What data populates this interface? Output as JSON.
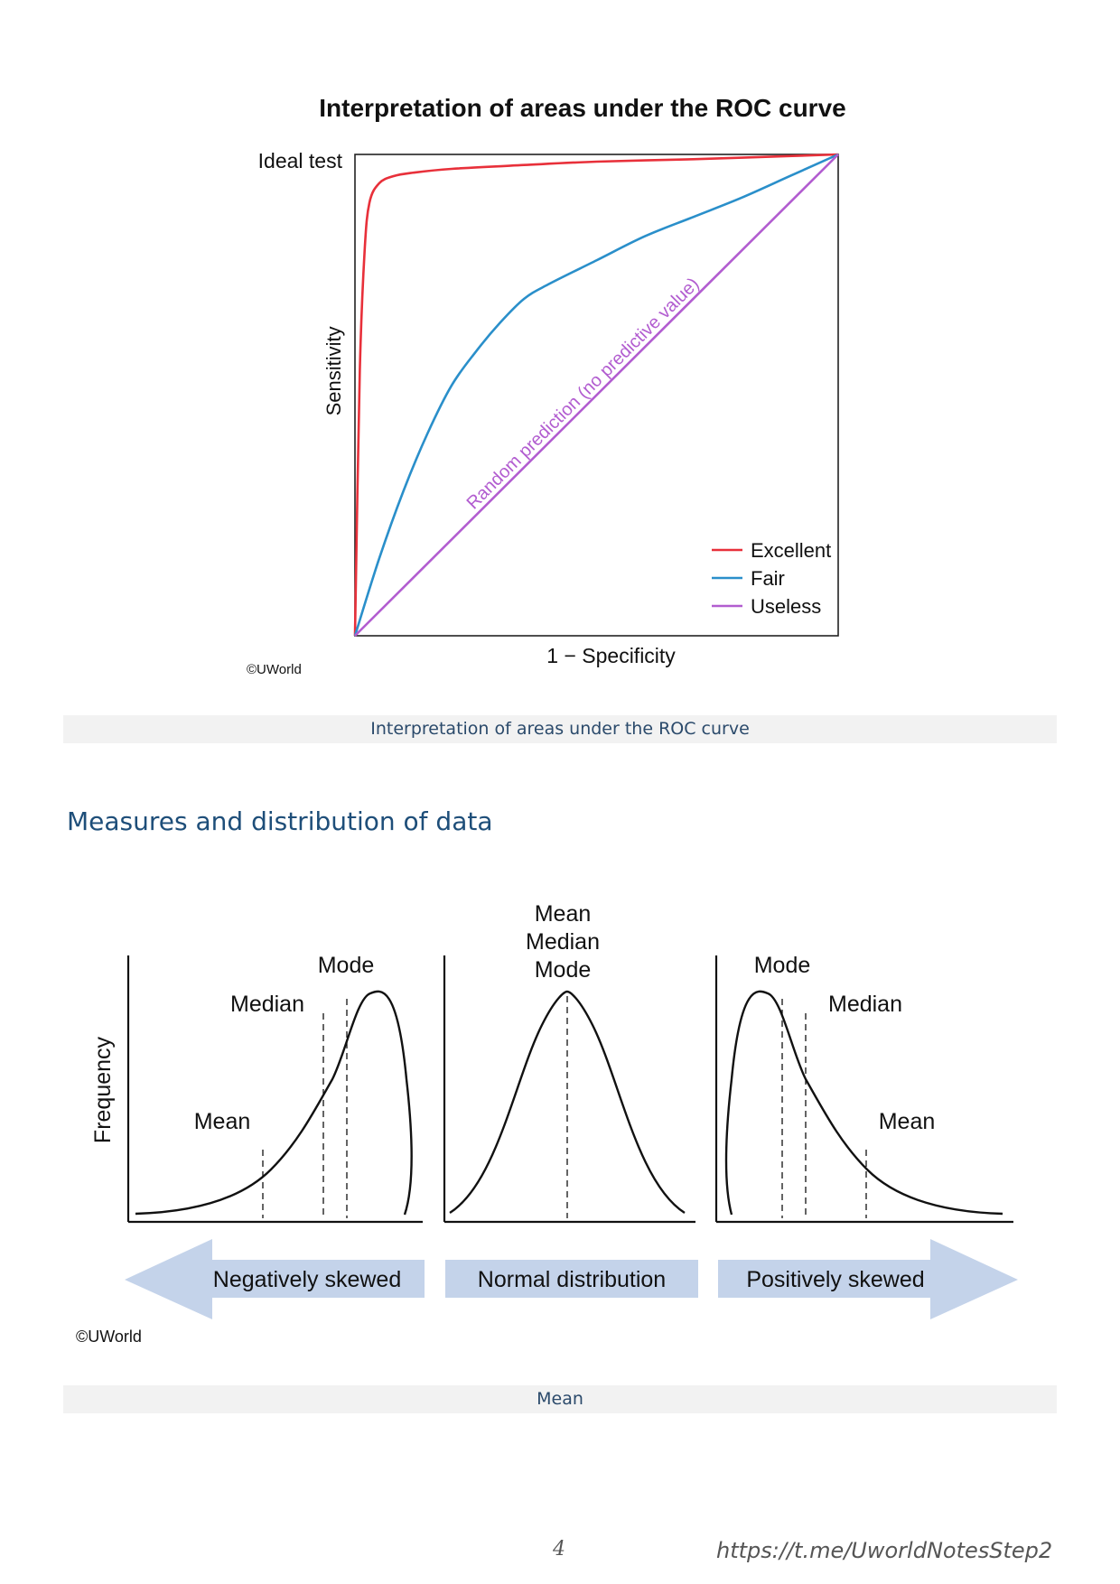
{
  "roc_figure": {
    "title": "Interpretation of areas under the ROC curve",
    "ideal_label": "Ideal test",
    "diagonal_label": "Random prediction (no predictive value)",
    "copyright": "©UWorld",
    "caption": "Interpretation of areas under the ROC curve"
  },
  "section_heading": "Measures and distribution of data",
  "distribution_figure": {
    "ylabel": "Frequency",
    "panels": [
      {
        "name": "Negatively skewed",
        "labels": [
          "Mode",
          "Median",
          "Mean"
        ]
      },
      {
        "name": "Normal distribution",
        "labels": [
          "Mean",
          "Median",
          "Mode"
        ]
      },
      {
        "name": "Positively skewed",
        "labels": [
          "Mode",
          "Median",
          "Mean"
        ]
      }
    ],
    "copyright": "©UWorld",
    "caption": "Mean"
  },
  "footer": {
    "page_number": "4",
    "link": "https://t.me/UworldNotesStep2"
  },
  "chart_data": [
    {
      "type": "line",
      "title": "Interpretation of areas under the ROC curve",
      "xlabel": "1 − Specificity",
      "ylabel": "Sensitivity",
      "xlim": [
        0,
        1
      ],
      "ylim": [
        0,
        1
      ],
      "grid": false,
      "legend_position": "bottom-right",
      "series": [
        {
          "name": "Excellent",
          "color": "#e8303a",
          "x": [
            0,
            0.01,
            0.02,
            0.03,
            0.05,
            0.08,
            0.12,
            0.2,
            0.35,
            0.5,
            0.7,
            0.85,
            1.0
          ],
          "y": [
            0,
            0.55,
            0.8,
            0.9,
            0.94,
            0.955,
            0.962,
            0.97,
            0.978,
            0.985,
            0.99,
            0.995,
            1.0
          ]
        },
        {
          "name": "Fair",
          "color": "#2a8fca",
          "x": [
            0,
            0.05,
            0.1,
            0.15,
            0.2,
            0.25,
            0.3,
            0.35,
            0.4,
            0.5,
            0.6,
            0.7,
            0.8,
            0.9,
            1.0
          ],
          "y": [
            0,
            0.16,
            0.3,
            0.42,
            0.52,
            0.59,
            0.65,
            0.7,
            0.73,
            0.78,
            0.83,
            0.87,
            0.91,
            0.955,
            1.0
          ]
        },
        {
          "name": "Useless",
          "color": "#b25dd0",
          "x": [
            0,
            1
          ],
          "y": [
            0,
            1
          ]
        }
      ]
    }
  ]
}
